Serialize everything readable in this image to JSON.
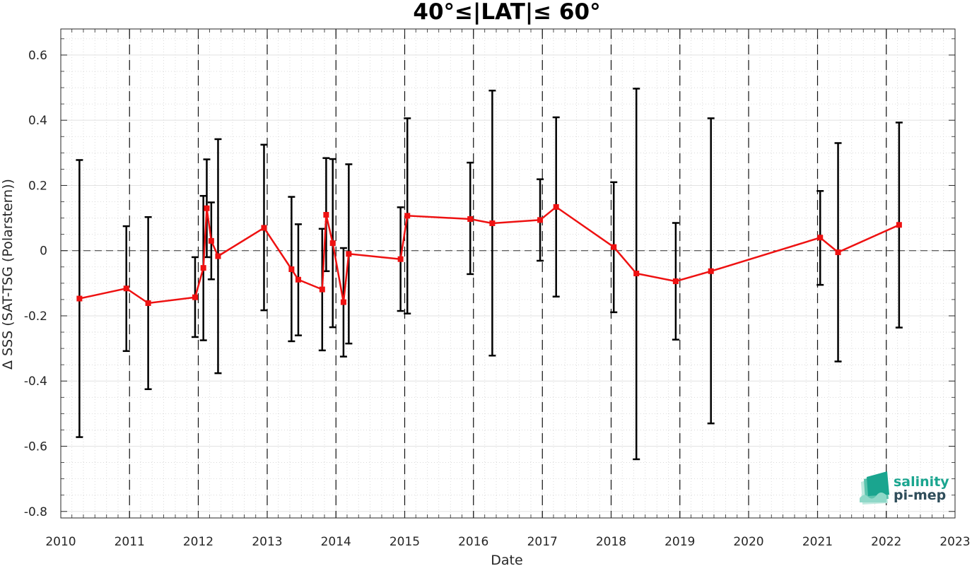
{
  "chart_data": {
    "type": "line",
    "title": "40°≤|LAT|≤ 60°",
    "xlabel": "Date",
    "ylabel": "Δ SSS (SAT-TSG (Polarstern))",
    "xlim": [
      "2010-01-01",
      "2023-01-01"
    ],
    "ylim": [
      -0.82,
      0.68
    ],
    "x_ticks": [
      "2010",
      "2011",
      "2012",
      "2013",
      "2014",
      "2015",
      "2016",
      "2017",
      "2018",
      "2019",
      "2020",
      "2021",
      "2022",
      "2023"
    ],
    "y_ticks": [
      "-0.8",
      "-0.6",
      "-0.4",
      "-0.2",
      "0",
      "0.2",
      "0.4",
      "0.6"
    ],
    "grid": true,
    "year_boundaries": [
      "2011-01-01",
      "2012-01-01",
      "2013-01-01",
      "2014-01-01",
      "2015-01-01",
      "2016-01-01",
      "2017-01-01",
      "2018-01-01",
      "2019-01-01",
      "2020-01-01",
      "2021-01-01",
      "2022-01-01"
    ],
    "zero_line": 0,
    "series": [
      {
        "color": "#ee1111",
        "errorbar_color": "#000000",
        "points": [
          {
            "x": "2010-04-10",
            "y": -0.147,
            "lo": -0.572,
            "hi": 0.278
          },
          {
            "x": "2010-12-15",
            "y": -0.116,
            "lo": -0.308,
            "hi": 0.075
          },
          {
            "x": "2011-04-10",
            "y": -0.161,
            "lo": -0.425,
            "hi": 0.103
          },
          {
            "x": "2011-12-15",
            "y": -0.143,
            "lo": -0.265,
            "hi": -0.02
          },
          {
            "x": "2012-01-28",
            "y": -0.053,
            "lo": -0.275,
            "hi": 0.168
          },
          {
            "x": "2012-02-15",
            "y": 0.13,
            "lo": -0.02,
            "hi": 0.28
          },
          {
            "x": "2012-03-10",
            "y": 0.03,
            "lo": -0.088,
            "hi": 0.148
          },
          {
            "x": "2012-04-15",
            "y": -0.017,
            "lo": -0.376,
            "hi": 0.342
          },
          {
            "x": "2012-12-15",
            "y": 0.07,
            "lo": -0.183,
            "hi": 0.325
          },
          {
            "x": "2013-05-10",
            "y": -0.057,
            "lo": -0.278,
            "hi": 0.165
          },
          {
            "x": "2013-06-15",
            "y": -0.089,
            "lo": -0.26,
            "hi": 0.081
          },
          {
            "x": "2013-10-20",
            "y": -0.119,
            "lo": -0.306,
            "hi": 0.067
          },
          {
            "x": "2013-11-10",
            "y": 0.11,
            "lo": -0.063,
            "hi": 0.284
          },
          {
            "x": "2013-12-15",
            "y": 0.023,
            "lo": -0.235,
            "hi": 0.281
          },
          {
            "x": "2014-02-10",
            "y": -0.158,
            "lo": -0.325,
            "hi": 0.008
          },
          {
            "x": "2014-03-10",
            "y": -0.01,
            "lo": -0.285,
            "hi": 0.265
          },
          {
            "x": "2014-12-10",
            "y": -0.026,
            "lo": -0.185,
            "hi": 0.133
          },
          {
            "x": "2015-01-15",
            "y": 0.107,
            "lo": -0.193,
            "hi": 0.406
          },
          {
            "x": "2015-12-15",
            "y": 0.097,
            "lo": -0.072,
            "hi": 0.27
          },
          {
            "x": "2016-04-10",
            "y": 0.084,
            "lo": -0.322,
            "hi": 0.491
          },
          {
            "x": "2016-12-20",
            "y": 0.094,
            "lo": -0.031,
            "hi": 0.219
          },
          {
            "x": "2017-03-15",
            "y": 0.134,
            "lo": -0.141,
            "hi": 0.409
          },
          {
            "x": "2018-01-15",
            "y": 0.011,
            "lo": -0.189,
            "hi": 0.21
          },
          {
            "x": "2018-05-15",
            "y": -0.07,
            "lo": -0.64,
            "hi": 0.497
          },
          {
            "x": "2018-12-10",
            "y": -0.094,
            "lo": -0.273,
            "hi": 0.085
          },
          {
            "x": "2019-06-15",
            "y": -0.063,
            "lo": -0.53,
            "hi": 0.406
          },
          {
            "x": "2021-01-15",
            "y": 0.04,
            "lo": -0.105,
            "hi": 0.183
          },
          {
            "x": "2021-04-20",
            "y": -0.005,
            "lo": -0.34,
            "hi": 0.33
          },
          {
            "x": "2022-03-10",
            "y": 0.079,
            "lo": -0.236,
            "hi": 0.393
          }
        ]
      }
    ]
  },
  "logo": {
    "line1": "salinity",
    "line2": "pi-mep",
    "color1": "#1aa58f",
    "color2": "#2f4d5a"
  }
}
